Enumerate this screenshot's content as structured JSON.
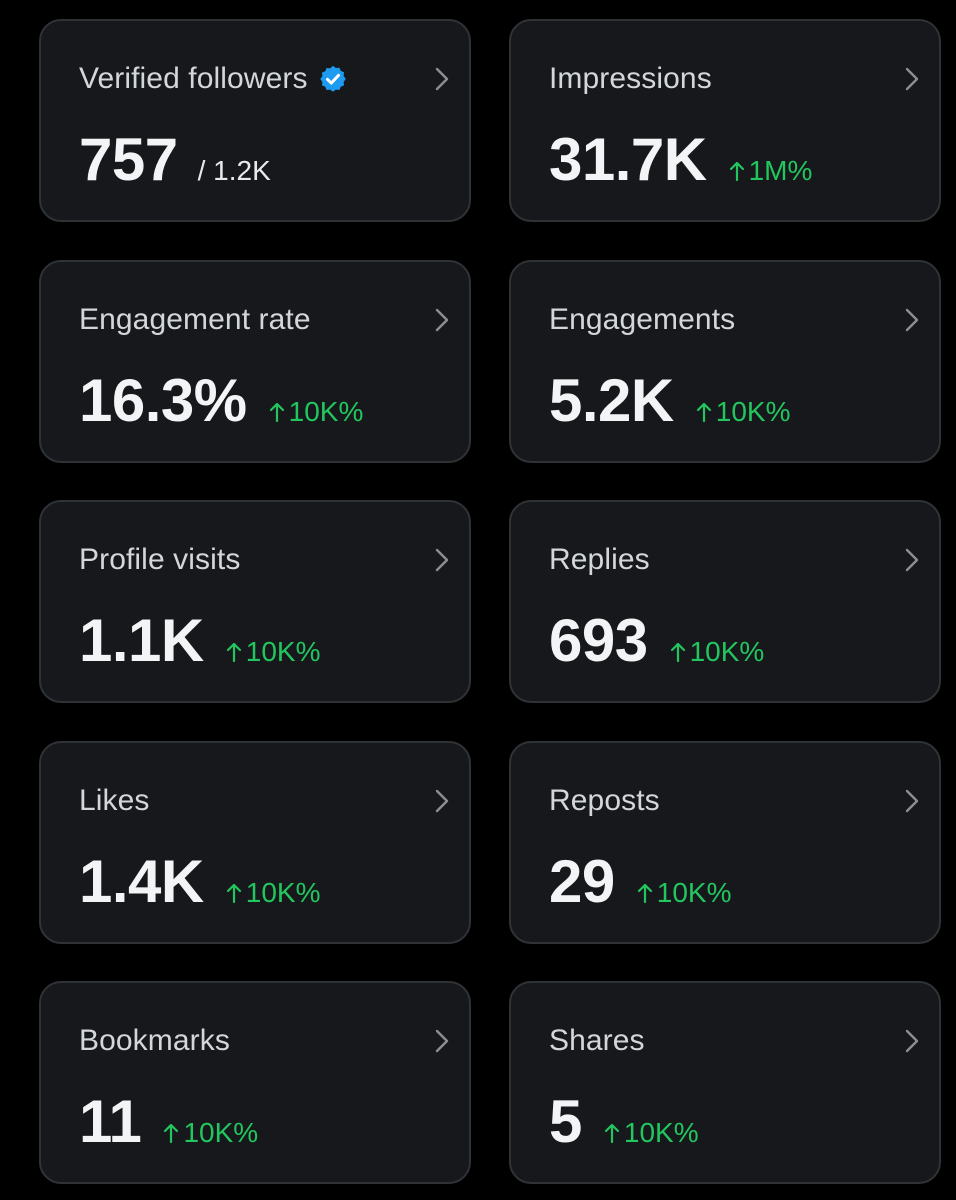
{
  "colors": {
    "background": "#000000",
    "card_background": "#16181c",
    "card_border": "#2f3336",
    "label_text": "#d4d7da",
    "value_text": "#f2f4f5",
    "positive_change": "#22c55e",
    "verified_badge": "#1d9bf0"
  },
  "cards": [
    {
      "label": "Verified followers",
      "value": "757",
      "total": "/ 1.2K",
      "icon": "verified-badge-icon"
    },
    {
      "label": "Impressions",
      "value": "31.7K",
      "change": "1M%",
      "icon": "arrow-up-icon"
    },
    {
      "label": "Engagement rate",
      "value": "16.3%",
      "change": "10K%",
      "icon": "arrow-up-icon"
    },
    {
      "label": "Engagements",
      "value": "5.2K",
      "change": "10K%",
      "icon": "arrow-up-icon"
    },
    {
      "label": "Profile visits",
      "value": "1.1K",
      "change": "10K%",
      "icon": "arrow-up-icon"
    },
    {
      "label": "Replies",
      "value": "693",
      "change": "10K%",
      "icon": "arrow-up-icon"
    },
    {
      "label": "Likes",
      "value": "1.4K",
      "change": "10K%",
      "icon": "arrow-up-icon"
    },
    {
      "label": "Reposts",
      "value": "29",
      "change": "10K%",
      "icon": "arrow-up-icon"
    },
    {
      "label": "Bookmarks",
      "value": "11",
      "change": "10K%",
      "icon": "arrow-up-icon"
    },
    {
      "label": "Shares",
      "value": "5",
      "change": "10K%",
      "icon": "arrow-up-icon"
    }
  ]
}
